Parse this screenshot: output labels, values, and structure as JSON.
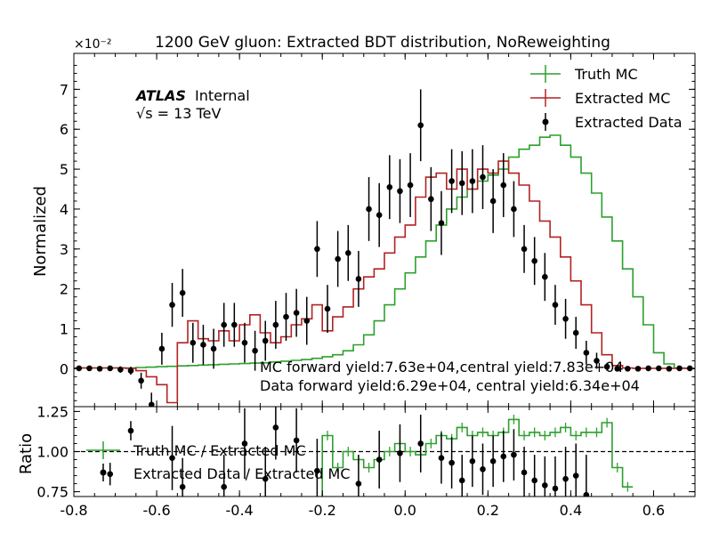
{
  "chart_data": {
    "type": "line",
    "title": "1200 GeV gluon: Extracted BDT distribution, NoReweighting",
    "exponent_label": "×10⁻²",
    "atlas_label": "ATLAS",
    "atlas_sub": "Internal",
    "energy_label": "√s = 13 TeV",
    "ylabel": "Normalized",
    "ratio_ylabel": "Ratio",
    "xlim": [
      -0.8,
      0.7
    ],
    "ylim": [
      -0.95,
      7.9
    ],
    "ratio_ylim": [
      0.72,
      1.28
    ],
    "x_ticks": [
      "-0.8",
      "-0.6",
      "-0.4",
      "-0.2",
      "0.0",
      "0.2",
      "0.4",
      "0.6"
    ],
    "y_ticks": [
      "0",
      "1",
      "2",
      "3",
      "4",
      "5",
      "6",
      "7"
    ],
    "ratio_ticks": [
      "0.75",
      "1.00",
      "1.25"
    ],
    "bin_width": 0.025,
    "bin_start": -0.8,
    "legend": {
      "truth": "Truth MC",
      "extracted": "Extracted MC",
      "data": "Extracted Data"
    },
    "ratio_legend": {
      "truth_ratio": "Truth MC / Extracted MC",
      "data_ratio": "Extracted Data / Extracted MC"
    },
    "yield_text": {
      "mc": "MC forward yield:7.63e+04,central yield:7.83e+04",
      "data": "Data forward yield:6.29e+04, central yield:6.34e+04"
    },
    "series": [
      {
        "name": "Truth MC",
        "color": "#2ca02c",
        "values": [
          0.02,
          0.02,
          0.02,
          0.02,
          0.02,
          0.02,
          0.03,
          0.04,
          0.05,
          0.06,
          0.07,
          0.08,
          0.09,
          0.1,
          0.11,
          0.12,
          0.13,
          0.14,
          0.15,
          0.17,
          0.19,
          0.21,
          0.23,
          0.26,
          0.3,
          0.35,
          0.45,
          0.6,
          0.85,
          1.2,
          1.6,
          2.0,
          2.4,
          2.8,
          3.2,
          3.6,
          4.0,
          4.3,
          4.5,
          4.7,
          4.85,
          5.0,
          5.3,
          5.5,
          5.6,
          5.8,
          5.85,
          5.6,
          5.3,
          4.9,
          4.4,
          3.8,
          3.2,
          2.5,
          1.8,
          1.1,
          0.4,
          0.12,
          0.02,
          0.01
        ]
      },
      {
        "name": "Extracted MC",
        "color": "#b22222",
        "values": [
          0.02,
          0.02,
          0.02,
          0.02,
          0.02,
          0.01,
          -0.05,
          -0.2,
          -0.4,
          -0.85,
          0.65,
          1.2,
          0.75,
          0.7,
          0.95,
          0.7,
          1.1,
          1.35,
          0.9,
          0.65,
          0.8,
          1.1,
          1.25,
          1.6,
          0.95,
          1.3,
          1.55,
          2.0,
          2.3,
          2.5,
          2.9,
          3.3,
          3.6,
          4.3,
          4.8,
          4.9,
          4.5,
          5.0,
          4.5,
          5.0,
          4.9,
          5.2,
          4.9,
          4.6,
          4.2,
          3.7,
          3.3,
          2.8,
          2.2,
          1.6,
          0.9,
          0.35,
          0.08,
          0.02,
          0.01,
          0.01,
          0.01,
          0.01,
          0.01,
          0.01
        ]
      },
      {
        "name": "Extracted Data",
        "color": "#000000",
        "values": [
          0.01,
          0.01,
          0.0,
          0.01,
          -0.02,
          -0.05,
          -0.3,
          -0.9,
          0.5,
          1.6,
          1.9,
          0.65,
          0.6,
          0.5,
          1.1,
          1.1,
          0.65,
          0.45,
          0.7,
          1.1,
          1.3,
          1.4,
          1.2,
          3.0,
          1.5,
          2.75,
          2.9,
          2.25,
          4.0,
          3.85,
          4.55,
          4.45,
          4.6,
          6.1,
          4.25,
          3.65,
          4.7,
          4.65,
          4.7,
          4.8,
          4.2,
          4.6,
          4.0,
          3.0,
          2.7,
          2.3,
          1.6,
          1.25,
          0.9,
          0.4,
          0.2,
          0.05,
          0.0,
          0.0,
          0.0,
          0.01,
          0.01,
          0.0,
          0.01,
          0.01
        ],
        "errors": [
          0.05,
          0.05,
          0.05,
          0.05,
          0.08,
          0.1,
          0.2,
          0.3,
          0.4,
          0.55,
          0.6,
          0.5,
          0.5,
          0.5,
          0.55,
          0.55,
          0.5,
          0.5,
          0.5,
          0.6,
          0.6,
          0.6,
          0.6,
          0.7,
          0.6,
          0.7,
          0.7,
          0.7,
          0.8,
          0.8,
          0.8,
          0.8,
          0.8,
          0.9,
          0.8,
          0.8,
          0.8,
          0.8,
          0.8,
          0.8,
          0.8,
          0.8,
          0.7,
          0.6,
          0.6,
          0.6,
          0.5,
          0.5,
          0.4,
          0.3,
          0.2,
          0.1,
          0.05,
          0.05,
          0.05,
          0.05,
          0.05,
          0.05,
          0.05,
          0.05
        ]
      }
    ],
    "ratio_series": [
      {
        "name": "Truth MC / Extracted MC",
        "color": "#2ca02c",
        "x": [
          -0.2125,
          -0.1875,
          -0.1625,
          -0.1375,
          -0.1125,
          -0.0875,
          -0.0625,
          -0.0375,
          -0.0125,
          0.0125,
          0.0375,
          0.0625,
          0.0875,
          0.1125,
          0.1375,
          0.1625,
          0.1875,
          0.2125,
          0.2375,
          0.2625,
          0.2875,
          0.3125,
          0.3375,
          0.3625,
          0.3875,
          0.4125,
          0.4375,
          0.4625,
          0.4875,
          0.5125,
          0.5375
        ],
        "values": [
          0.6,
          1.1,
          0.9,
          1.0,
          0.95,
          0.9,
          0.95,
          1.0,
          1.05,
          1.0,
          0.98,
          1.05,
          1.1,
          1.08,
          1.15,
          1.1,
          1.12,
          1.1,
          1.12,
          1.2,
          1.1,
          1.12,
          1.1,
          1.12,
          1.15,
          1.1,
          1.12,
          1.12,
          1.18,
          0.9,
          0.78
        ]
      },
      {
        "name": "Extracted Data / Extracted MC",
        "color": "#000000",
        "x": [
          -0.7125,
          -0.6625,
          -0.5625,
          -0.5375,
          -0.4375,
          -0.3875,
          -0.3375,
          -0.3125,
          -0.2625,
          -0.2125,
          -0.1125,
          -0.0625,
          -0.0125,
          0.0375,
          0.0875,
          0.1125,
          0.1375,
          0.1625,
          0.1875,
          0.2125,
          0.2375,
          0.2625,
          0.2875,
          0.3125,
          0.3375,
          0.3625,
          0.3875,
          0.4125,
          0.4375
        ],
        "values": [
          0.86,
          1.13,
          0.96,
          0.78,
          0.78,
          1.05,
          0.83,
          1.15,
          1.07,
          0.88,
          0.8,
          0.95,
          0.99,
          1.05,
          0.96,
          0.93,
          0.82,
          0.94,
          0.89,
          0.94,
          0.97,
          0.98,
          0.87,
          0.82,
          0.79,
          0.77,
          0.83,
          0.85,
          0.73
        ],
        "errors": [
          0.07,
          0.06,
          0.2,
          0.18,
          0.2,
          0.22,
          0.2,
          0.2,
          0.2,
          0.2,
          0.18,
          0.18,
          0.18,
          0.18,
          0.16,
          0.16,
          0.16,
          0.16,
          0.16,
          0.16,
          0.16,
          0.16,
          0.16,
          0.16,
          0.18,
          0.2,
          0.2,
          0.2,
          0.25
        ]
      }
    ]
  }
}
